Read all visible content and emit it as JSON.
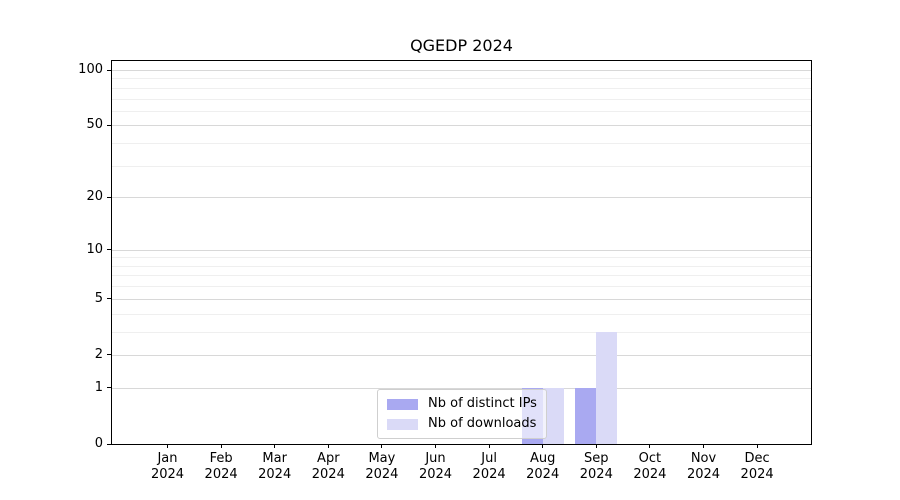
{
  "chart_data": {
    "type": "bar",
    "title": "QGEDP 2024",
    "categories": [
      "Jan",
      "Feb",
      "Mar",
      "Apr",
      "May",
      "Jun",
      "Jul",
      "Aug",
      "Sep",
      "Oct",
      "Nov",
      "Dec"
    ],
    "category_year": "2024",
    "series": [
      {
        "name": "Nb of distinct IPs",
        "color": "#a9a9f1",
        "values": [
          0,
          0,
          0,
          0,
          0,
          0,
          0,
          1,
          1,
          0,
          0,
          0
        ]
      },
      {
        "name": "Nb of downloads",
        "color": "#dadaf7",
        "values": [
          0,
          0,
          0,
          0,
          0,
          0,
          0,
          1,
          3,
          0,
          0,
          0
        ]
      }
    ],
    "y_axis": {
      "scale": "log10(1+x)",
      "ticks": [
        0,
        1,
        2,
        5,
        10,
        20,
        50,
        100
      ],
      "minor_gridlines": [
        3,
        4,
        6,
        7,
        8,
        9,
        30,
        40,
        60,
        70,
        80,
        90
      ],
      "ylim": [
        0,
        112
      ]
    },
    "xlabel": "",
    "ylabel": "",
    "grid": true,
    "legend_position": "lower center (overlapping Aug bars)"
  },
  "colors": {
    "background": "#ffffff",
    "spine": "#000000",
    "grid_major": "#d8d8d8",
    "grid_minor": "#efefef",
    "text": "#000000"
  }
}
